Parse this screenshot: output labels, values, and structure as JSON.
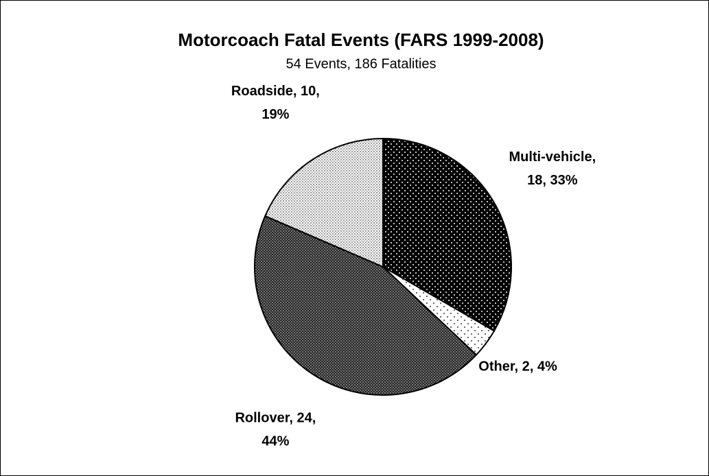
{
  "chart_data": {
    "type": "pie",
    "title": "Motorcoach Fatal Events (FARS 1999-2008)",
    "subtitle": "54 Events, 186 Fatalities",
    "values": [
      18,
      2,
      24,
      10
    ],
    "value_labels": [
      [
        "Multi-vehicle,",
        "18, 33%"
      ],
      [
        "Other, 2, 4%"
      ],
      [
        "Rollover, 24,",
        "44%"
      ],
      [
        "Roadside, 10,",
        "19%"
      ]
    ]
  }
}
